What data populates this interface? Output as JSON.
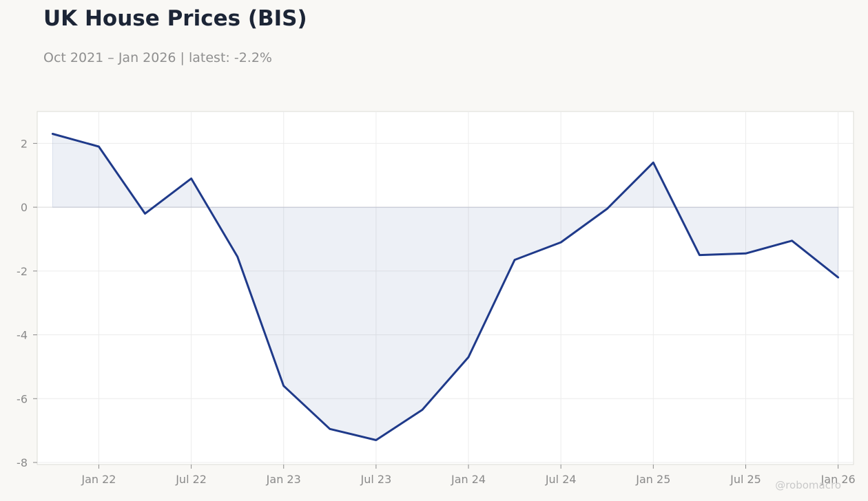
{
  "header": {
    "title": "UK House Prices (BIS)",
    "subtitle": "Oct 2021 – Jan 2026 | latest: -2.2%"
  },
  "watermark": "@robomacro",
  "colors": {
    "line": "#1f3a8a",
    "fill": "#1f3a8a",
    "grid": "#ececec",
    "zero_line": "#dcdcdc",
    "panel_border": "#dcdcd6",
    "panel_bg": "#ffffff"
  },
  "chart_data": {
    "type": "area",
    "title": "UK House Prices (BIS)",
    "subtitle": "Oct 2021 – Jan 2026 | latest: -2.2%",
    "xlabel": "",
    "ylabel": "",
    "x": [
      "2021-10",
      "2022-01",
      "2022-04",
      "2022-07",
      "2022-10",
      "2023-01",
      "2023-04",
      "2023-07",
      "2023-10",
      "2024-01",
      "2024-04",
      "2024-07",
      "2024-10",
      "2025-01",
      "2025-04",
      "2025-07",
      "2025-10",
      "2026-01"
    ],
    "series": [
      {
        "values": [
          2.3,
          1.9,
          -0.2,
          0.9,
          -1.55,
          -5.6,
          -6.95,
          -7.3,
          -6.35,
          -4.7,
          -1.65,
          -1.1,
          -0.05,
          1.4,
          -1.5,
          -1.45,
          -1.05,
          -2.2
        ]
      }
    ],
    "x_ticks": [
      {
        "x": "2022-01",
        "label": "Jan 22"
      },
      {
        "x": "2022-07",
        "label": "Jul 22"
      },
      {
        "x": "2023-01",
        "label": "Jan 23"
      },
      {
        "x": "2023-07",
        "label": "Jul 23"
      },
      {
        "x": "2024-01",
        "label": "Jan 24"
      },
      {
        "x": "2024-07",
        "label": "Jul 24"
      },
      {
        "x": "2025-01",
        "label": "Jan 25"
      },
      {
        "x": "2025-07",
        "label": "Jul 25"
      },
      {
        "x": "2026-01",
        "label": "Jan 26"
      }
    ],
    "y_ticks": [
      2,
      0,
      -2,
      -4,
      -6,
      -8
    ],
    "ylim": [
      -8,
      3
    ],
    "xlim": [
      "2021-09",
      "2026-02"
    ],
    "grid": true,
    "legend": "none",
    "fill_to_zero": true
  }
}
